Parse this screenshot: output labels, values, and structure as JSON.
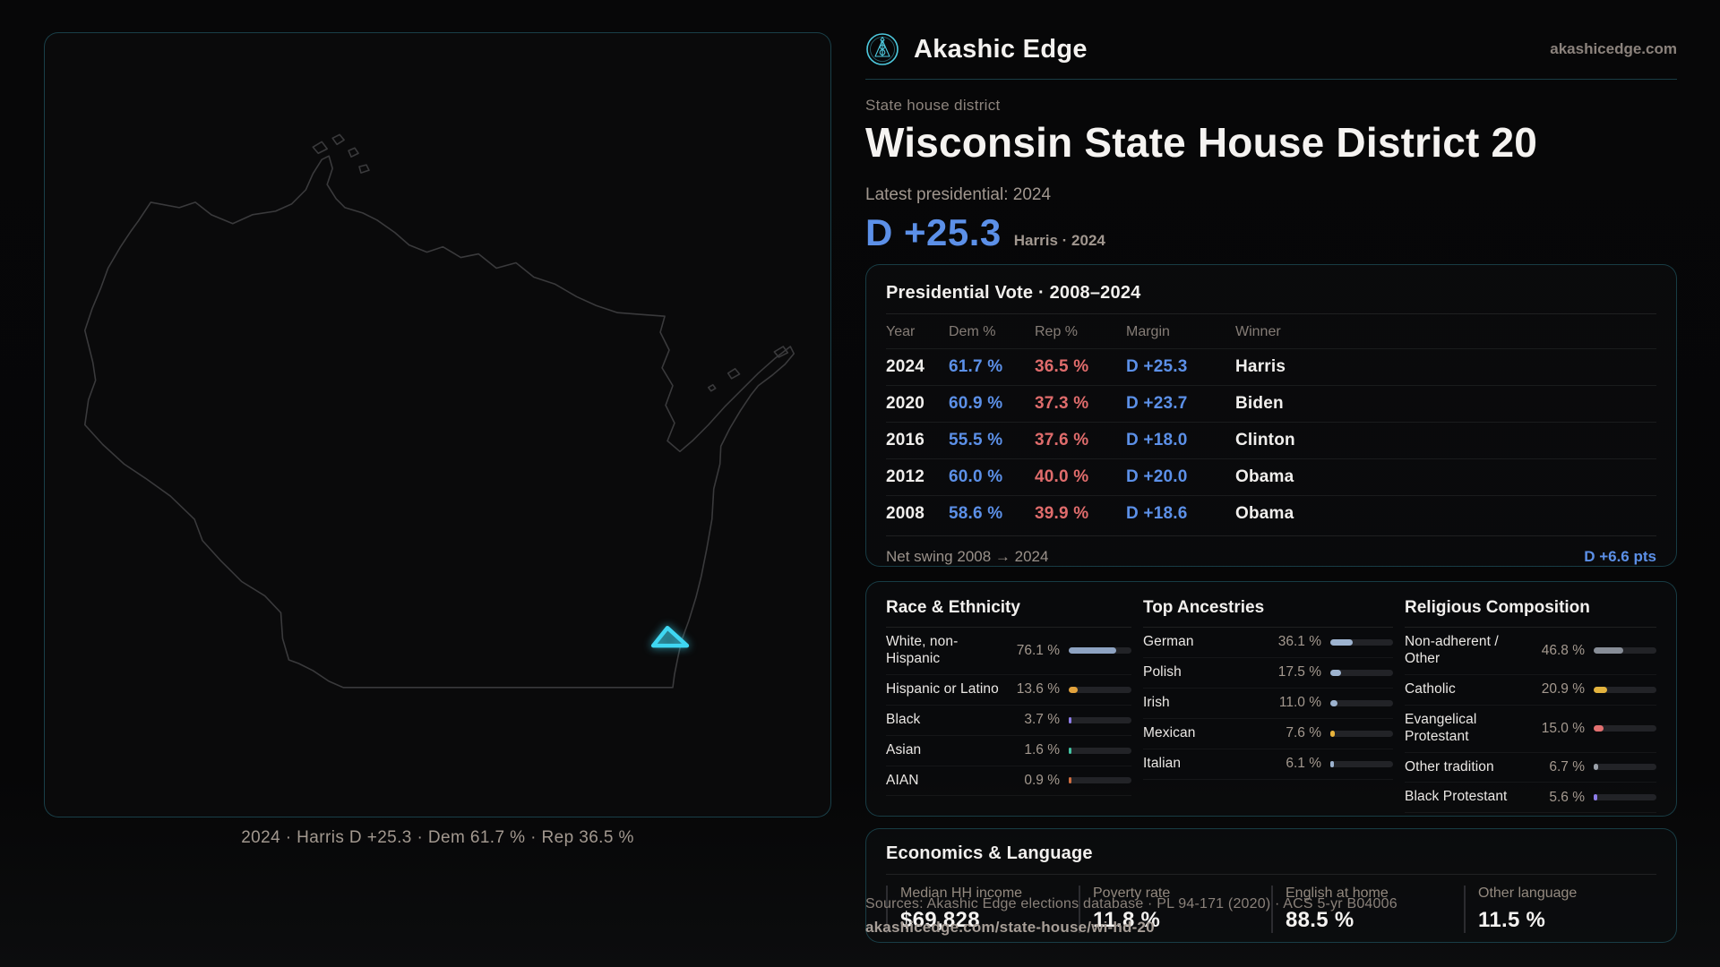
{
  "brand": {
    "name": "Akashic Edge",
    "website": "akashicedge.com"
  },
  "header": {
    "kicker": "State house district",
    "title": "Wisconsin State House District 20",
    "latest_label": "Latest presidential: 2024",
    "margin_value": "D +25.3",
    "margin_context": "Harris · 2024"
  },
  "map": {
    "caption": "2024 · Harris D +25.3 · Dem 61.7 % · Rep 36.5 %"
  },
  "vote_panel": {
    "title": "Presidential Vote · 2008–2024",
    "columns": [
      "Year",
      "Dem %",
      "Rep %",
      "Margin",
      "Winner"
    ],
    "rows": [
      [
        "2024",
        "61.7 %",
        "36.5 %",
        "D +25.3",
        "Harris"
      ],
      [
        "2020",
        "60.9 %",
        "37.3 %",
        "D +23.7",
        "Biden"
      ],
      [
        "2016",
        "55.5 %",
        "37.6 %",
        "D +18.0",
        "Clinton"
      ],
      [
        "2012",
        "60.0 %",
        "40.0 %",
        "D +20.0",
        "Obama"
      ],
      [
        "2008",
        "58.6 %",
        "39.9 %",
        "D +18.6",
        "Obama"
      ]
    ],
    "net_swing_label": "Net swing 2008 → 2024",
    "net_swing_value": "D +6.6 pts"
  },
  "demographics": {
    "race": {
      "title": "Race & Ethnicity",
      "rows": [
        {
          "label": "White, non-\nHispanic",
          "value": "76.1 %",
          "pct": 76.1,
          "color": "#8ea3c2"
        },
        {
          "label": "Hispanic or Latino",
          "value": "13.6 %",
          "pct": 13.6,
          "color": "#e2a23c"
        },
        {
          "label": "Black",
          "value": "3.7 %",
          "pct": 3.7,
          "color": "#8d7ce8"
        },
        {
          "label": "Asian",
          "value": "1.6 %",
          "pct": 1.6,
          "color": "#43c3a2"
        },
        {
          "label": "AIAN",
          "value": "0.9 %",
          "pct": 0.9,
          "color": "#cf6d3f"
        }
      ]
    },
    "ancestries": {
      "title": "Top Ancestries",
      "rows": [
        {
          "label": "German",
          "value": "36.1 %",
          "pct": 36.1,
          "color": "#9db3cf"
        },
        {
          "label": "Polish",
          "value": "17.5 %",
          "pct": 17.5,
          "color": "#9db3cf"
        },
        {
          "label": "Irish",
          "value": "11.0 %",
          "pct": 11.0,
          "color": "#9db3cf"
        },
        {
          "label": "Mexican",
          "value": "7.6 %",
          "pct": 7.6,
          "color": "#e8b33c"
        },
        {
          "label": "Italian",
          "value": "6.1 %",
          "pct": 6.1,
          "color": "#9db3cf"
        }
      ]
    },
    "religion": {
      "title": "Religious Composition",
      "rows": [
        {
          "label": "Non-adherent /\nOther",
          "value": "46.8 %",
          "pct": 46.8,
          "color": "#878d97"
        },
        {
          "label": "Catholic",
          "value": "20.9 %",
          "pct": 20.9,
          "color": "#e3b33e"
        },
        {
          "label": "Evangelical\nProtestant",
          "value": "15.0 %",
          "pct": 15.0,
          "color": "#e27070"
        },
        {
          "label": "Other tradition",
          "value": "6.7 %",
          "pct": 6.7,
          "color": "#9aa0a9"
        },
        {
          "label": "Black Protestant",
          "value": "5.6 %",
          "pct": 5.6,
          "color": "#8d7ce8"
        }
      ]
    }
  },
  "economics": {
    "title": "Economics & Language",
    "stats": [
      {
        "label": "Median HH income",
        "value": "$69,828"
      },
      {
        "label": "Poverty rate",
        "value": "11.8 %"
      },
      {
        "label": "English at home",
        "value": "88.5 %"
      },
      {
        "label": "Other language",
        "value": "11.5 %"
      }
    ]
  },
  "footer": {
    "source": "Sources: Akashic Edge elections database · PL 94-171 (2020) · ACS 5-yr B04006",
    "permalink": "akashicedge.com/state-house/wi-hd-20"
  },
  "colors": {
    "dem": "#5c90e8",
    "rep": "#e06c6c",
    "accent_teal": "#3fd7f2",
    "map_outline": "#3a3a3c"
  }
}
